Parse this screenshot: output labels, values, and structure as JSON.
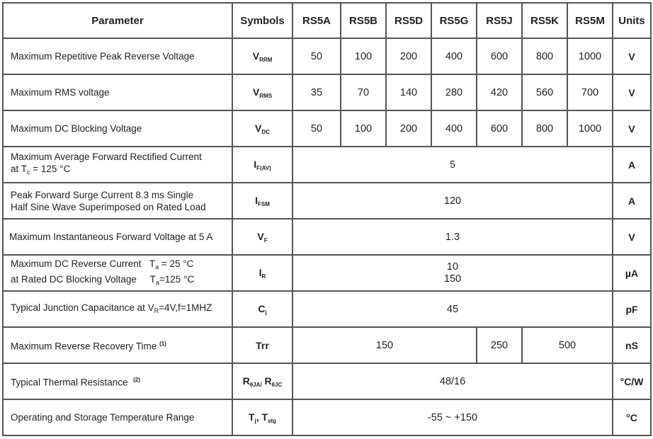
{
  "headers": {
    "parameter": "Parameter",
    "symbols": "Symbols",
    "models": [
      "RS5A",
      "RS5B",
      "RS5D",
      "RS5G",
      "RS5J",
      "RS5K",
      "RS5M"
    ],
    "units": "Units"
  },
  "rows": [
    {
      "param": "Maximum Repetitive Peak Reverse Voltage",
      "sym": "V",
      "sub": "RRM",
      "values": [
        "50",
        "100",
        "200",
        "400",
        "600",
        "800",
        "1000"
      ],
      "unit": "V"
    },
    {
      "param": "Maximum RMS voltage",
      "sym": "V",
      "sub": "RMS",
      "values": [
        "35",
        "70",
        "140",
        "280",
        "420",
        "560",
        "700"
      ],
      "unit": "V"
    },
    {
      "param": "Maximum DC Blocking Voltage",
      "sym": "V",
      "sub": "DC",
      "values": [
        "50",
        "100",
        "200",
        "400",
        "600",
        "800",
        "1000"
      ],
      "unit": "V"
    },
    {
      "param": "Maximum Average Forward Rectified Current",
      "param2a": "at T",
      "param2sub": "c",
      "param2b": " = 125 °C",
      "sym": "I",
      "sub": "F(AV)",
      "value": "5",
      "unit": "A"
    },
    {
      "param": "Peak Forward Surge Current 8.3 ms Single",
      "param2": "Half Sine Wave Superimposed on Rated Load",
      "sym": "I",
      "sub": "FSM",
      "value": "120",
      "unit": "A"
    },
    {
      "param": "Maximum Instantaneous Forward Voltage at 5 A",
      "sym": "V",
      "sub": "F",
      "value": "1.3",
      "unit": "V"
    },
    {
      "param": "Maximum DC Reverse Current",
      "cond1": "T",
      "cond1sub": "a",
      "cond1b": " = 25 °C",
      "param2": "at Rated DC Blocking Voltage",
      "cond2": "T",
      "cond2sub": "a",
      "cond2b": "=125 °C",
      "sym": "I",
      "sub": "R",
      "value1": "10",
      "value2": "150",
      "unit": "µA"
    },
    {
      "param": "Typical Junction Capacitance at V",
      "paramsub": "R",
      "paramb": "=4V,f=1MHZ",
      "sym": "C",
      "sub": "j",
      "value": "45",
      "unit": "pF"
    },
    {
      "param": "Maximum Reverse Recovery Time",
      "note": "(1)",
      "sym": "Trr",
      "values": [
        "150",
        "250",
        "500"
      ],
      "unit": "nS"
    },
    {
      "param": "Typical Thermal Resistance",
      "note": "(2)",
      "sym": "R",
      "sub": "θJA/",
      "sym2": " R",
      "sub2": "θJC",
      "value": "48/16",
      "unit": "°C/W"
    },
    {
      "param": "Operating and Storage Temperature Range",
      "sym": "T",
      "sub": "j",
      "sym2": ", T",
      "sub2": "stg",
      "value": "-55 ~ +150",
      "unit": "°C"
    }
  ]
}
